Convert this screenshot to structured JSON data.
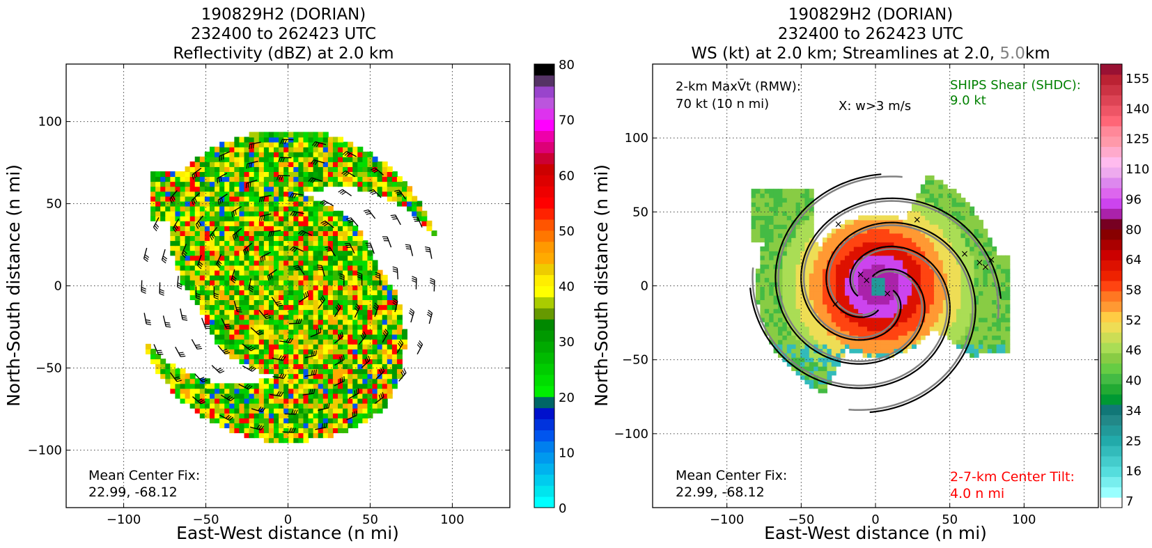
{
  "colors": {
    "green": "#008000",
    "red": "#ff0000",
    "gray": "#808080",
    "barb": "#000000"
  },
  "chart_data": [
    {
      "type": "heatmap",
      "title_lines": [
        "190829H2 (DORIAN)",
        "232400 to 262423 UTC",
        "Reflectivity (dBZ) at 2.0 km"
      ],
      "xlabel": "East-West distance (n mi)",
      "ylabel": "North-South distance (n mi)",
      "xlim": [
        -135,
        135
      ],
      "ylim": [
        -135,
        135
      ],
      "xticks": [
        -100,
        -50,
        0,
        50,
        100
      ],
      "yticks": [
        -100,
        -50,
        0,
        50,
        100
      ],
      "grid": true,
      "overlay": "wind barbs",
      "annotations": {
        "center_fix_label": "Mean Center Fix:",
        "center_fix_value": "22.99, -68.12"
      },
      "colorbar": {
        "ticks": [
          0,
          10,
          20,
          30,
          40,
          50,
          60,
          70,
          80
        ],
        "range": [
          0,
          80
        ],
        "colors": [
          "#00ffff",
          "#00e5ee",
          "#00ccee",
          "#00b2ee",
          "#0099ee",
          "#007fee",
          "#0055ee",
          "#0033dd",
          "#0011cc",
          "#006666",
          "#00ee00",
          "#00dd00",
          "#00cc00",
          "#00bb00",
          "#00aa00",
          "#009900",
          "#008800",
          "#669900",
          "#aacc00",
          "#ffff00",
          "#ffee00",
          "#eecc00",
          "#ffaa00",
          "#ff9900",
          "#ff7700",
          "#ff5500",
          "#ff2200",
          "#ff0000",
          "#ee0000",
          "#dd0000",
          "#cc0000",
          "#cc0033",
          "#dd0077",
          "#ee00aa",
          "#ff00ff",
          "#dd33ee",
          "#bb55dd",
          "#9944cc",
          "#553366",
          "#000000"
        ]
      }
    },
    {
      "type": "heatmap",
      "title_lines": [
        "190829H2 (DORIAN)",
        "232400 to 262423 UTC"
      ],
      "title_line3": {
        "prefix": "WS (kt) at 2.0 km; Streamlines at 2.0, ",
        "highlight": "5.0",
        "suffix": "km"
      },
      "xlabel": "East-West distance (n mi)",
      "ylabel": "North-South distance (n mi)",
      "xlim": [
        -150,
        150
      ],
      "ylim": [
        -150,
        150
      ],
      "xticks": [
        -100,
        -50,
        0,
        50,
        100
      ],
      "yticks": [
        -100,
        -50,
        0,
        50,
        100
      ],
      "grid": true,
      "overlay": "streamlines",
      "annotations": {
        "maxvt_line1": "2-km MaxV̄t (RMW):",
        "maxvt_line2": "70 kt (10 n mi)",
        "updraft": "X: w>3 m/s",
        "shear_label": "SHIPS Shear (SHDC):",
        "shear_value": "9.0 kt",
        "center_fix_label": "Mean Center Fix:",
        "center_fix_value": "22.99, -68.12",
        "tilt_label": "2-7-km Center Tilt:",
        "tilt_value": "4.0 n mi"
      },
      "colorbar": {
        "ticks": [
          7,
          16,
          25,
          34,
          40,
          46,
          52,
          58,
          64,
          80,
          96,
          110,
          125,
          140,
          155
        ],
        "colors": [
          "#ffffff",
          "#99ffff",
          "#77eeee",
          "#55dddd",
          "#44cccc",
          "#33bbbb",
          "#22aaaa",
          "#229999",
          "#228888",
          "#117777",
          "#009933",
          "#22aa33",
          "#44bb44",
          "#66cc44",
          "#88cc44",
          "#aadd55",
          "#ccdd55",
          "#eedd55",
          "#ffcc44",
          "#ff9933",
          "#ff7722",
          "#ff4411",
          "#ee2200",
          "#dd1100",
          "#cc0000",
          "#aa0000",
          "#880000",
          "#770022",
          "#aa22aa",
          "#cc44ee",
          "#dd66ee",
          "#dd88ee",
          "#eeaaee",
          "#ffbbee",
          "#ffaacc",
          "#ff99aa",
          "#ff8899",
          "#ff6677",
          "#ee5566",
          "#dd4455",
          "#cc3344",
          "#bb2233",
          "#991133"
        ]
      }
    }
  ]
}
